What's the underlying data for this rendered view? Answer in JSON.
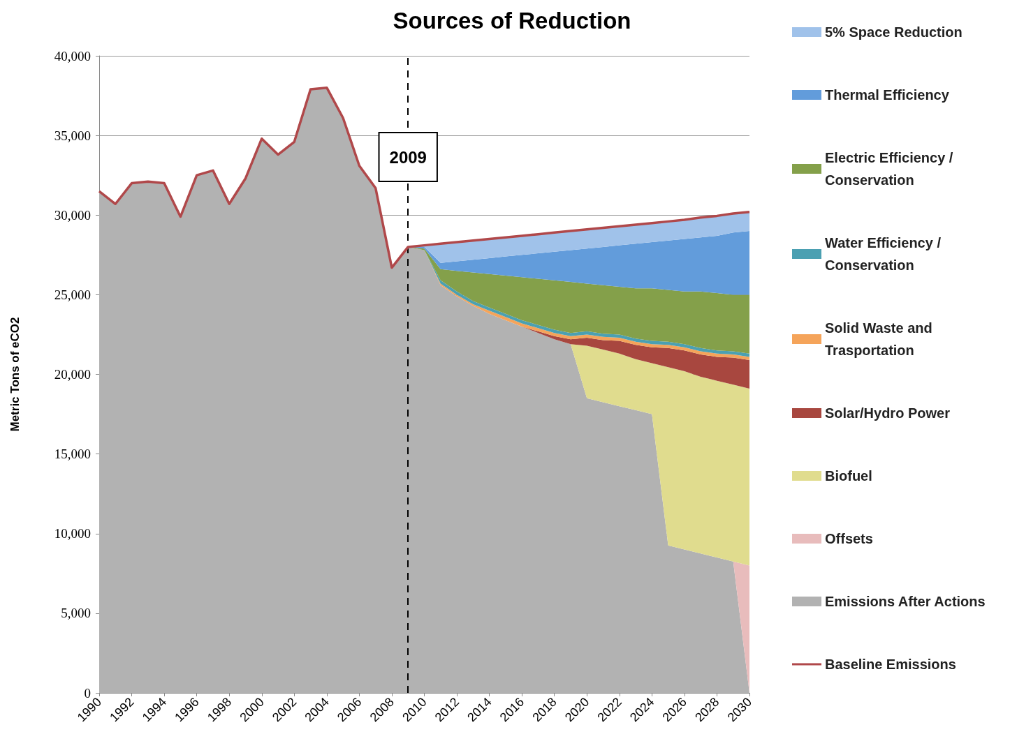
{
  "chart_data": {
    "type": "area",
    "title": "Sources of Reduction",
    "ylabel": "Metric Tons of eCO2",
    "stacked": true,
    "grid": "y",
    "legend": "right",
    "x": [
      1990,
      1991,
      1992,
      1993,
      1994,
      1995,
      1996,
      1997,
      1998,
      1999,
      2000,
      2001,
      2002,
      2003,
      2004,
      2005,
      2006,
      2007,
      2008,
      2009,
      2010,
      2011,
      2012,
      2013,
      2014,
      2015,
      2016,
      2017,
      2018,
      2019,
      2020,
      2021,
      2022,
      2023,
      2024,
      2025,
      2026,
      2027,
      2028,
      2029,
      2030
    ],
    "xlim": [
      1990,
      2030
    ],
    "xticks": [
      1990,
      1992,
      1994,
      1996,
      1998,
      2000,
      2002,
      2004,
      2006,
      2008,
      2010,
      2012,
      2014,
      2016,
      2018,
      2020,
      2022,
      2024,
      2026,
      2028,
      2030
    ],
    "ylim": [
      0,
      40000
    ],
    "yticks": [
      0,
      {
        "value": 5000,
        "label": "5,000"
      },
      {
        "value": 10000,
        "label": "10,000"
      },
      {
        "value": 15000,
        "label": "15,000"
      },
      {
        "value": 20000,
        "label": "20,000"
      },
      {
        "value": 25000,
        "label": "25,000"
      },
      {
        "value": 30000,
        "label": "30,000"
      },
      {
        "value": 35000,
        "label": "35,000"
      },
      {
        "value": 40000,
        "label": "40,000"
      }
    ],
    "ref_lines": [
      {
        "axis": "x",
        "value": 2009,
        "label": "2009",
        "color": "#000000",
        "line_style": "dashed"
      }
    ],
    "series": [
      {
        "name": "Emissions After Actions",
        "color": "#b2b2b2",
        "values": [
          31500,
          30700,
          32000,
          32100,
          32000,
          29900,
          32500,
          32800,
          30700,
          32300,
          34800,
          33800,
          34600,
          37900,
          38000,
          36100,
          33100,
          31700,
          26700,
          28000,
          27800,
          25600,
          24900,
          24300,
          23800,
          23400,
          23000,
          22600,
          22200,
          21900,
          18500,
          18250,
          18000,
          17750,
          17500,
          9250,
          9000,
          8750,
          8500,
          8250,
          0
        ]
      },
      {
        "name": "Offsets",
        "color": "#e8bcbc",
        "values": [
          null,
          null,
          null,
          null,
          null,
          null,
          null,
          null,
          null,
          null,
          null,
          null,
          null,
          null,
          null,
          null,
          null,
          null,
          null,
          0,
          0,
          0,
          0,
          0,
          0,
          0,
          0,
          0,
          0,
          0,
          0,
          0,
          0,
          0,
          0,
          0,
          0,
          0,
          0,
          0,
          8000
        ]
      },
      {
        "name": "Biofuel",
        "color": "#e0dc8e",
        "values": [
          null,
          null,
          null,
          null,
          null,
          null,
          null,
          null,
          null,
          null,
          null,
          null,
          null,
          null,
          null,
          null,
          null,
          null,
          null,
          0,
          0,
          0,
          0,
          0,
          0,
          0,
          0,
          0,
          0,
          0,
          3300,
          3300,
          3300,
          3200,
          3200,
          11200,
          11200,
          11100,
          11100,
          11100,
          11100
        ]
      },
      {
        "name": "Solar/Hydro Power",
        "color": "#a8473f",
        "values": [
          null,
          null,
          null,
          null,
          null,
          null,
          null,
          null,
          null,
          null,
          null,
          null,
          null,
          null,
          null,
          null,
          null,
          null,
          null,
          0,
          0,
          0,
          0,
          0,
          0,
          0,
          0,
          100,
          200,
          300,
          500,
          600,
          800,
          900,
          1000,
          1200,
          1300,
          1400,
          1500,
          1700,
          1800
        ]
      },
      {
        "name": "Solid Waste and Trasportation",
        "color": "#f5a45a",
        "values": [
          null,
          null,
          null,
          null,
          null,
          null,
          null,
          null,
          null,
          null,
          null,
          null,
          null,
          null,
          null,
          null,
          null,
          null,
          null,
          0,
          0,
          100,
          100,
          100,
          200,
          200,
          200,
          200,
          200,
          200,
          200,
          200,
          200,
          200,
          200,
          200,
          200,
          200,
          200,
          200,
          200
        ]
      },
      {
        "name": "Water Efficiency / Conservation",
        "color": "#4ba0b2",
        "values": [
          null,
          null,
          null,
          null,
          null,
          null,
          null,
          null,
          null,
          null,
          null,
          null,
          null,
          null,
          null,
          null,
          null,
          null,
          null,
          0,
          0,
          200,
          200,
          200,
          200,
          200,
          200,
          200,
          200,
          200,
          200,
          200,
          200,
          200,
          200,
          200,
          200,
          200,
          200,
          200,
          200
        ]
      },
      {
        "name": "Electric Efficiency / Conservation",
        "color": "#84a04a",
        "values": [
          null,
          null,
          null,
          null,
          null,
          null,
          null,
          null,
          null,
          null,
          null,
          null,
          null,
          null,
          null,
          null,
          null,
          null,
          null,
          0,
          100,
          700,
          1300,
          1800,
          2100,
          2400,
          2700,
          2900,
          3100,
          3200,
          3000,
          3050,
          3000,
          3150,
          3300,
          3250,
          3300,
          3550,
          3600,
          3550,
          3700
        ]
      },
      {
        "name": "Thermal Efficiency",
        "color": "#629cdb",
        "values": [
          null,
          null,
          null,
          null,
          null,
          null,
          null,
          null,
          null,
          null,
          null,
          null,
          null,
          null,
          null,
          null,
          null,
          null,
          null,
          0,
          100,
          400,
          600,
          800,
          1000,
          1200,
          1400,
          1600,
          1800,
          2000,
          2200,
          2400,
          2600,
          2800,
          2900,
          3100,
          3300,
          3400,
          3600,
          3900,
          4000
        ]
      },
      {
        "name": "5% Space Reduction",
        "color": "#a0c2ea",
        "values": [
          null,
          null,
          null,
          null,
          null,
          null,
          null,
          null,
          null,
          null,
          null,
          null,
          null,
          null,
          null,
          null,
          null,
          null,
          null,
          0,
          100,
          1200,
          1200,
          1200,
          1200,
          1200,
          1200,
          1200,
          1200,
          1200,
          1200,
          1200,
          1200,
          1200,
          1200,
          1200,
          1200,
          1250,
          1250,
          1200,
          1200
        ]
      },
      {
        "name": "Baseline Emissions",
        "type": "line",
        "color": "#b0484a",
        "values": [
          31500,
          30700,
          32000,
          32100,
          32000,
          29900,
          32500,
          32800,
          30700,
          32300,
          34800,
          33800,
          34600,
          37900,
          38000,
          36100,
          33100,
          31700,
          26700,
          28000,
          28100,
          28200,
          28300,
          28400,
          28500,
          28600,
          28700,
          28800,
          28900,
          29000,
          29100,
          29200,
          29300,
          29400,
          29500,
          29600,
          29700,
          29850,
          29950,
          30100,
          30200
        ]
      }
    ]
  }
}
